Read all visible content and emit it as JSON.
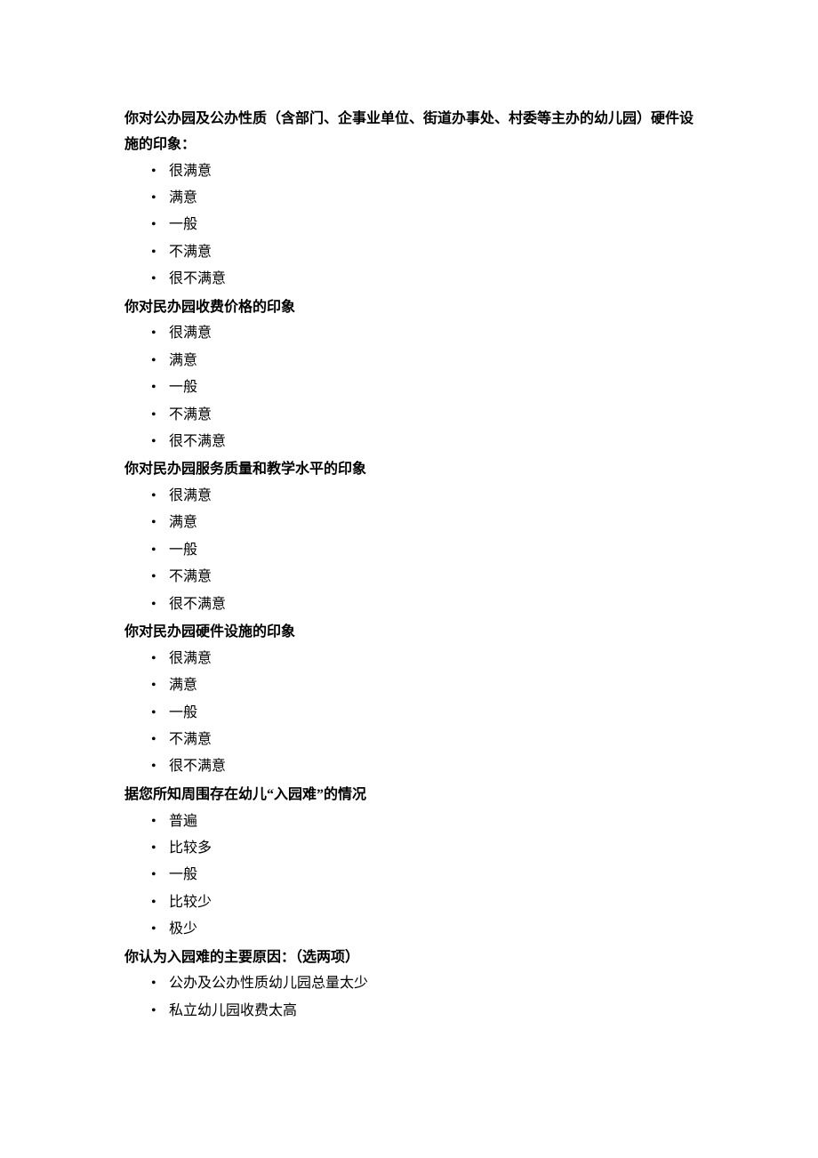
{
  "questions": [
    {
      "text": "你对公办园及公办性质（含部门、企事业单位、街道办事处、村委等主办的幼儿园）硬件设施的印象：",
      "options": [
        "很满意",
        "满意",
        "一般",
        "不满意",
        "很不满意"
      ]
    },
    {
      "text": "你对民办园收费价格的印象",
      "options": [
        "很满意",
        "满意",
        "一般",
        "不满意",
        "很不满意"
      ]
    },
    {
      "text": "你对民办园服务质量和教学水平的印象",
      "options": [
        "很满意",
        "满意",
        "一般",
        "不满意",
        "很不满意"
      ]
    },
    {
      "text": "你对民办园硬件设施的印象",
      "options": [
        "很满意",
        "满意",
        "一般",
        "不满意",
        "很不满意"
      ]
    },
    {
      "text": "据您所知周围存在幼儿“入园难”的情况",
      "options": [
        "普遍",
        "比较多",
        "一般",
        "比较少",
        "极少"
      ]
    },
    {
      "text": "你认为入园难的主要原因：（选两项）",
      "options": [
        "公办及公办性质幼儿园总量太少",
        "私立幼儿园收费太高"
      ]
    }
  ]
}
